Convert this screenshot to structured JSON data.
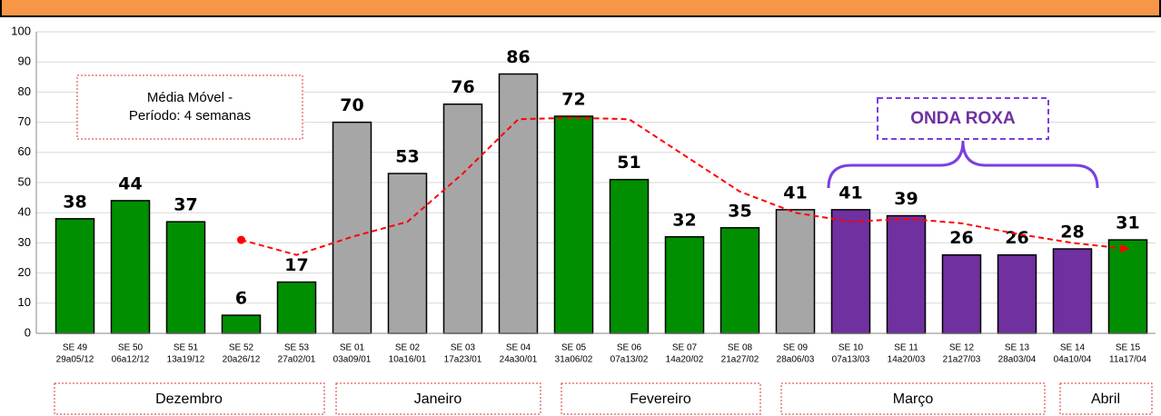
{
  "chart_data": {
    "type": "bar",
    "categories": [
      "SE 49",
      "SE 50",
      "SE 51",
      "SE 52",
      "SE 53",
      "SE 01",
      "SE 02",
      "SE 03",
      "SE 04",
      "SE 05",
      "SE 06",
      "SE 07",
      "SE 08",
      "SE 09",
      "SE 10",
      "SE 11",
      "SE 12",
      "SE 13",
      "SE 14",
      "SE 15"
    ],
    "subcategories": [
      "29a05/12",
      "06a12/12",
      "13a19/12",
      "20a26/12",
      "27a02/01",
      "03a09/01",
      "10a16/01",
      "17a23/01",
      "24a30/01",
      "31a06/02",
      "07a13/02",
      "14a20/02",
      "21a27/02",
      "28a06/03",
      "07a13/03",
      "14a20/03",
      "21a27/03",
      "28a03/04",
      "04a10/04",
      "11a17/04"
    ],
    "values": [
      38,
      44,
      37,
      6,
      17,
      70,
      53,
      76,
      86,
      72,
      51,
      32,
      35,
      41,
      41,
      39,
      26,
      26,
      28,
      31
    ],
    "colors": [
      "#008f00",
      "#008f00",
      "#008f00",
      "#008f00",
      "#008f00",
      "#a6a6a6",
      "#a6a6a6",
      "#a6a6a6",
      "#a6a6a6",
      "#008f00",
      "#008f00",
      "#008f00",
      "#008f00",
      "#a6a6a6",
      "#7030a0",
      "#7030a0",
      "#7030a0",
      "#7030a0",
      "#7030a0",
      "#008f00"
    ],
    "moving_average": {
      "color": "#ff0000",
      "values": [
        null,
        null,
        null,
        31,
        26,
        32,
        37,
        53,
        71,
        71.5,
        71,
        59,
        47,
        40,
        37,
        38,
        36.5,
        33,
        30,
        28
      ]
    },
    "ylim": [
      0,
      100
    ],
    "yticks": [
      0,
      10,
      20,
      30,
      40,
      50,
      60,
      70,
      80,
      90,
      100
    ],
    "grid": true,
    "annotations": [
      "Média Móvel -",
      "Período: 4 semanas",
      "ONDA ROXA"
    ],
    "months": [
      "Dezembro",
      "Janeiro",
      "Fevereiro",
      "Março",
      "Abril"
    ]
  }
}
